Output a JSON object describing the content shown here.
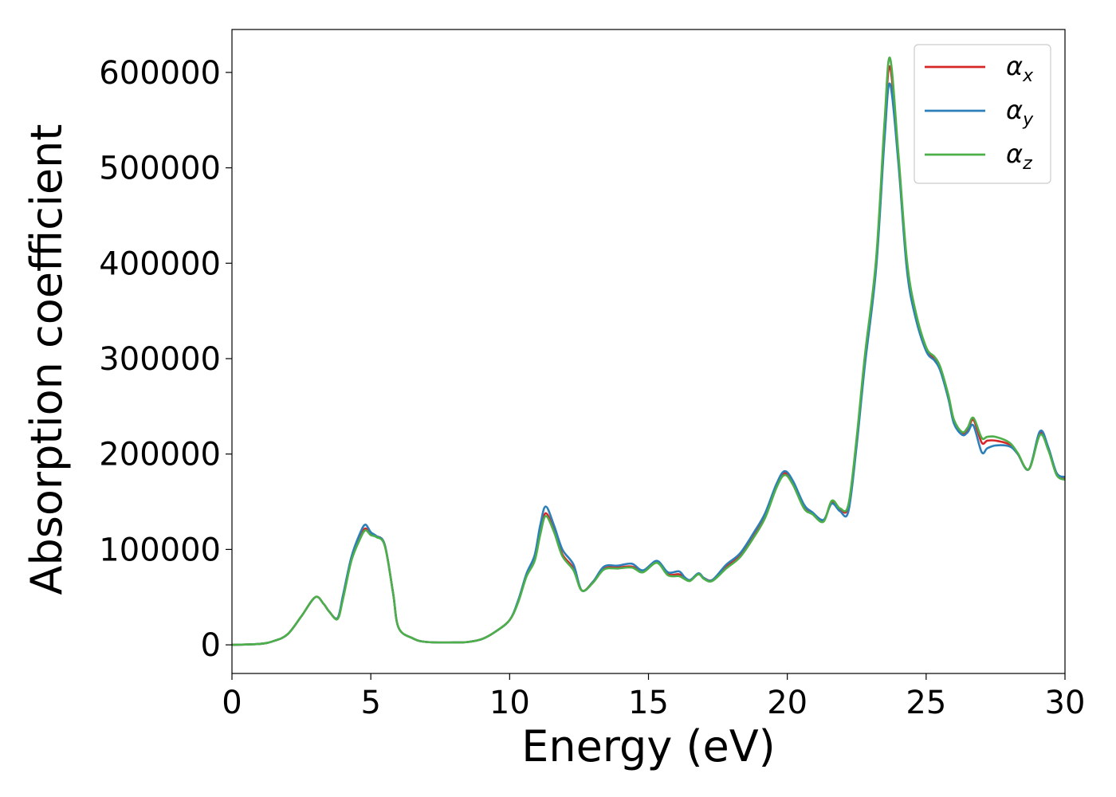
{
  "chart_data": {
    "type": "line",
    "title": "",
    "xlabel": "Energy (eV)",
    "ylabel": "Absorption coefficient",
    "xlim": [
      0,
      30
    ],
    "ylim": [
      -30000,
      645000
    ],
    "x_ticks": [
      0,
      5,
      10,
      15,
      20,
      25,
      30
    ],
    "x_tick_labels": [
      "0",
      "5",
      "10",
      "15",
      "20",
      "25",
      "30"
    ],
    "y_ticks": [
      0,
      100000,
      200000,
      300000,
      400000,
      500000,
      600000
    ],
    "y_tick_labels": [
      "0",
      "100000",
      "200000",
      "300000",
      "400000",
      "500000",
      "600000"
    ],
    "grid": false,
    "legend_position": "top-right",
    "colors": {
      "alpha_x": "#d62728",
      "alpha_y": "#2c7fb8",
      "alpha_z": "#4daf4a"
    },
    "x": [
      0,
      1,
      1.5,
      2,
      2.5,
      3,
      3.3,
      3.5,
      3.8,
      4.0,
      4.3,
      4.6,
      4.8,
      5.0,
      5.2,
      5.5,
      5.8,
      6.0,
      6.5,
      7,
      8,
      8.5,
      9.0,
      9.5,
      10.0,
      10.3,
      10.6,
      10.9,
      11.1,
      11.3,
      11.6,
      11.9,
      12.3,
      12.6,
      13.0,
      13.4,
      13.9,
      14.4,
      14.8,
      15.3,
      15.7,
      16.1,
      16.3,
      16.5,
      16.8,
      17.0,
      17.3,
      17.8,
      18.3,
      18.8,
      19.2,
      19.6,
      19.9,
      20.2,
      20.6,
      20.9,
      21.3,
      21.6,
      21.9,
      22.2,
      22.5,
      22.8,
      23.2,
      23.5,
      23.7,
      24.0,
      24.3,
      24.6,
      25.0,
      25.3,
      25.5,
      25.8,
      26.0,
      26.3,
      26.5,
      26.7,
      27.0,
      27.2,
      27.5,
      28.0,
      28.3,
      28.7,
      29.1,
      29.4,
      29.7,
      30.0
    ],
    "series": [
      {
        "name": "αx",
        "name_base": "α",
        "name_sub": "x",
        "values": [
          0,
          1000,
          4000,
          11000,
          30000,
          50000,
          43000,
          35000,
          28000,
          50000,
          90000,
          112000,
          122000,
          116000,
          114000,
          105000,
          55000,
          18000,
          7000,
          3000,
          2500,
          3000,
          6000,
          14000,
          26000,
          45000,
          72000,
          90000,
          118000,
          138000,
          120000,
          95000,
          80000,
          57000,
          66000,
          80000,
          81000,
          82000,
          77000,
          87000,
          74000,
          74000,
          70000,
          68000,
          74000,
          70000,
          68000,
          82000,
          94000,
          115000,
          135000,
          166000,
          180000,
          170000,
          145000,
          138000,
          130000,
          150000,
          142000,
          145000,
          215000,
          300000,
          400000,
          540000,
          606000,
          510000,
          400000,
          350000,
          310000,
          300000,
          290000,
          260000,
          235000,
          222000,
          225000,
          236000,
          212000,
          214000,
          214000,
          210000,
          200000,
          184000,
          222000,
          205000,
          180000,
          175000
        ]
      },
      {
        "name": "αy",
        "name_base": "α",
        "name_sub": "y",
        "values": [
          0,
          1000,
          4000,
          11000,
          30000,
          50000,
          43000,
          35000,
          28000,
          52000,
          92000,
          116000,
          126000,
          118000,
          114000,
          105000,
          55000,
          18000,
          7000,
          3000,
          2500,
          3000,
          6000,
          14000,
          26000,
          46000,
          74000,
          94000,
          125000,
          145000,
          125000,
          100000,
          84000,
          57000,
          66000,
          82000,
          83000,
          85000,
          78000,
          88000,
          76000,
          77000,
          71000,
          68000,
          75000,
          70000,
          68000,
          84000,
          96000,
          118000,
          138000,
          168000,
          182000,
          172000,
          147000,
          139000,
          131000,
          148000,
          140000,
          140000,
          210000,
          295000,
          395000,
          530000,
          588000,
          505000,
          395000,
          345000,
          308000,
          298000,
          288000,
          258000,
          232000,
          220000,
          223000,
          230000,
          202000,
          206000,
          209000,
          208000,
          200000,
          184000,
          224000,
          207000,
          180000,
          176000
        ]
      },
      {
        "name": "αz",
        "name_base": "α",
        "name_sub": "z",
        "values": [
          0,
          1000,
          4000,
          11000,
          30000,
          50000,
          43000,
          35000,
          27000,
          48000,
          88000,
          110000,
          120000,
          115000,
          113000,
          104000,
          55000,
          18000,
          7000,
          3000,
          2500,
          3000,
          6000,
          14000,
          26000,
          44000,
          71000,
          88000,
          115000,
          135000,
          118000,
          93000,
          78000,
          57000,
          65000,
          79000,
          80000,
          81000,
          76000,
          86000,
          73000,
          72000,
          69000,
          67000,
          74000,
          69000,
          67000,
          80000,
          92000,
          113000,
          133000,
          164000,
          178000,
          168000,
          143000,
          137000,
          129000,
          151000,
          143000,
          147000,
          218000,
          305000,
          405000,
          548000,
          615000,
          515000,
          405000,
          352000,
          312000,
          302000,
          292000,
          262000,
          236000,
          223000,
          228000,
          238000,
          217000,
          218000,
          218000,
          212000,
          201000,
          184000,
          220000,
          204000,
          178000,
          173000
        ]
      }
    ]
  }
}
